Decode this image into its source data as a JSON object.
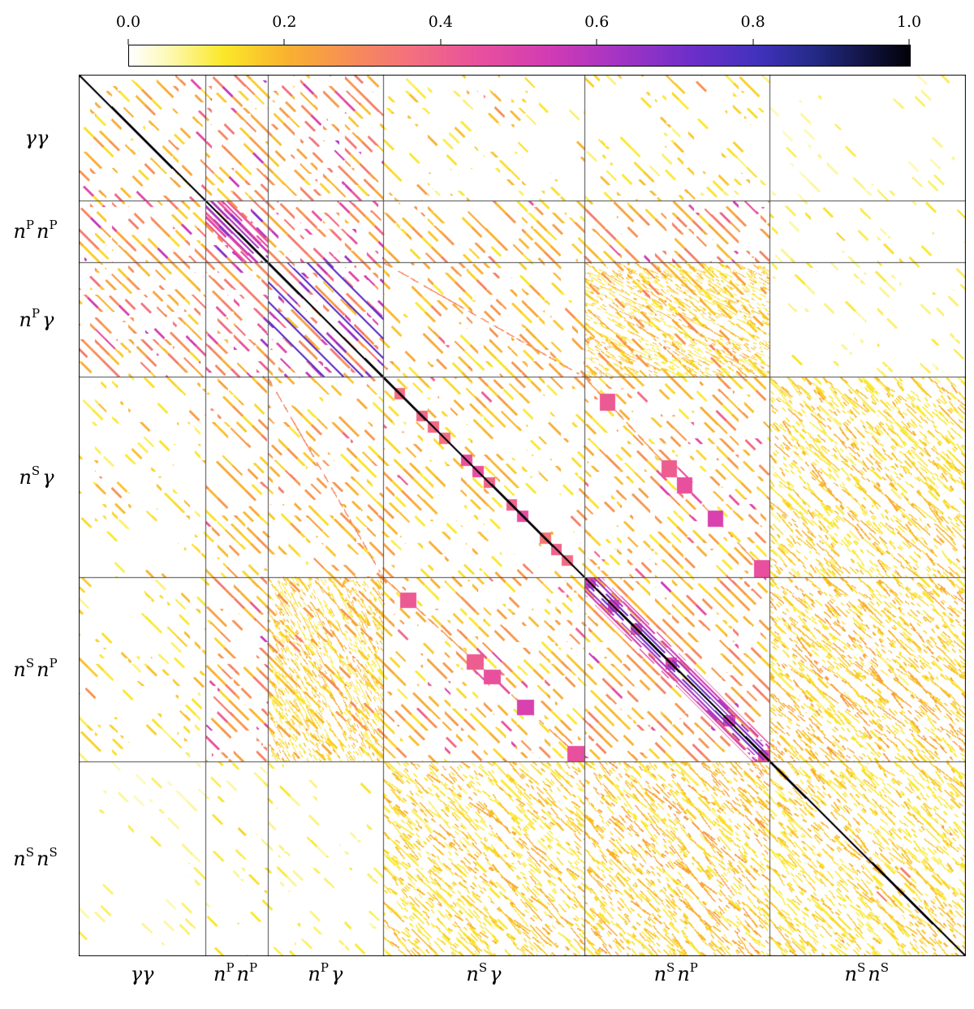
{
  "colorbar": {
    "ticks": [
      "0.0",
      "0.2",
      "0.4",
      "0.6",
      "0.8",
      "1.0"
    ],
    "tick_values": [
      0.0,
      0.2,
      0.4,
      0.6,
      0.8,
      1.0
    ],
    "min": 0.0,
    "max": 1.0
  },
  "chart_data": {
    "type": "heatmap",
    "description": "Correlation matrix between six two-point function data blocks; value 1 on the main diagonal, mostly near-zero elsewhere with periodic diagonal stripe correlations.",
    "groups": [
      {
        "name": "gamma-gamma",
        "segments": [
          [
            "γ",
            ""
          ],
          [
            "γ",
            ""
          ]
        ]
      },
      {
        "name": "nP-nP",
        "segments": [
          [
            "n",
            "P"
          ],
          [
            "n",
            "P"
          ]
        ]
      },
      {
        "name": "nP-gamma",
        "segments": [
          [
            "n",
            "P"
          ],
          [
            "γ",
            ""
          ]
        ]
      },
      {
        "name": "nS-gamma",
        "segments": [
          [
            "n",
            "S"
          ],
          [
            "γ",
            ""
          ]
        ]
      },
      {
        "name": "nS-nP",
        "segments": [
          [
            "n",
            "S"
          ],
          [
            "n",
            "P"
          ]
        ]
      },
      {
        "name": "nS-nS",
        "segments": [
          [
            "n",
            "S"
          ],
          [
            "n",
            "S"
          ]
        ]
      }
    ],
    "block_boundaries": [
      0.0,
      0.143,
      0.213,
      0.343,
      0.57,
      0.779,
      1.0
    ],
    "value_range": [
      0.0,
      1.0
    ],
    "diagonal_value": 1.0,
    "background_value": 0.0,
    "colormap_stops": [
      [
        0.0,
        "#ffffff"
      ],
      [
        0.05,
        "#fdf9b5"
      ],
      [
        0.12,
        "#fbe829"
      ],
      [
        0.2,
        "#f9b32e"
      ],
      [
        0.28,
        "#f78e55"
      ],
      [
        0.36,
        "#f3707e"
      ],
      [
        0.45,
        "#e84f9e"
      ],
      [
        0.54,
        "#d13bb5"
      ],
      [
        0.63,
        "#a234c4"
      ],
      [
        0.72,
        "#6d2fc9"
      ],
      [
        0.81,
        "#3f31bb"
      ],
      [
        0.88,
        "#232a85"
      ],
      [
        0.95,
        "#10123c"
      ],
      [
        1.0,
        "#030108"
      ]
    ],
    "block_params": [
      {
        "row": 0,
        "col": 0,
        "intensity": 0.22,
        "density": 0.5,
        "hot_frac": 0.1,
        "hot_value": 0.45
      },
      {
        "row": 0,
        "col": 1,
        "intensity": 0.26,
        "density": 0.7,
        "hot_frac": 0.12,
        "hot_value": 0.5
      },
      {
        "row": 0,
        "col": 2,
        "intensity": 0.28,
        "density": 0.65,
        "hot_frac": 0.15,
        "hot_value": 0.55
      },
      {
        "row": 0,
        "col": 3,
        "intensity": 0.16,
        "density": 0.32,
        "hot_frac": 0.04,
        "hot_value": 0.3
      },
      {
        "row": 0,
        "col": 4,
        "intensity": 0.15,
        "density": 0.3,
        "hot_frac": 0.03,
        "hot_value": 0.28
      },
      {
        "row": 0,
        "col": 5,
        "intensity": 0.08,
        "density": 0.12,
        "hot_frac": 0.0,
        "hot_value": 0.0
      },
      {
        "row": 1,
        "col": 1,
        "intensity": 0.45,
        "density": 0.95,
        "hot_frac": 0.3,
        "hot_value": 0.72
      },
      {
        "row": 1,
        "col": 2,
        "intensity": 0.35,
        "density": 0.9,
        "hot_frac": 0.25,
        "hot_value": 0.6
      },
      {
        "row": 1,
        "col": 3,
        "intensity": 0.22,
        "density": 0.6,
        "hot_frac": 0.08,
        "hot_value": 0.4
      },
      {
        "row": 1,
        "col": 4,
        "intensity": 0.26,
        "density": 0.72,
        "hot_frac": 0.12,
        "hot_value": 0.5
      },
      {
        "row": 1,
        "col": 5,
        "intensity": 0.12,
        "density": 0.3,
        "hot_frac": 0.0,
        "hot_value": 0.0
      },
      {
        "row": 2,
        "col": 2,
        "intensity": 0.3,
        "density": 0.88,
        "hot_frac": 0.2,
        "hot_value": 0.6
      },
      {
        "row": 2,
        "col": 3,
        "intensity": 0.22,
        "density": 0.62,
        "hot_frac": 0.06,
        "hot_value": 0.35
      },
      {
        "row": 2,
        "col": 4,
        "intensity": 0.22,
        "density": 0.6,
        "hot_frac": 0.06,
        "hot_value": 0.35
      },
      {
        "row": 2,
        "col": 5,
        "intensity": 0.1,
        "density": 0.25,
        "hot_frac": 0.0,
        "hot_value": 0.0
      },
      {
        "row": 3,
        "col": 3,
        "intensity": 0.2,
        "density": 0.45,
        "hot_frac": 0.05,
        "hot_value": 0.4
      },
      {
        "row": 3,
        "col": 4,
        "intensity": 0.22,
        "density": 0.55,
        "hot_frac": 0.08,
        "hot_value": 0.45
      },
      {
        "row": 3,
        "col": 5,
        "intensity": 0.1,
        "density": 0.25,
        "hot_frac": 0.0,
        "hot_value": 0.0
      },
      {
        "row": 4,
        "col": 4,
        "intensity": 0.26,
        "density": 0.68,
        "hot_frac": 0.1,
        "hot_value": 0.5
      },
      {
        "row": 4,
        "col": 5,
        "intensity": 0.13,
        "density": 0.35,
        "hot_frac": 0.02,
        "hot_value": 0.25
      },
      {
        "row": 5,
        "col": 5,
        "intensity": 0.12,
        "density": 0.25,
        "hot_frac": 0.03,
        "hot_value": 0.3
      }
    ],
    "features": [
      {
        "type": "offset_diagonals",
        "row": 2,
        "col": 2,
        "offsets": [
          0.022,
          0.044,
          0.066
        ],
        "halfwidth": 0.0013,
        "value": 0.75
      },
      {
        "type": "near_diagonal_stripes",
        "row": 1,
        "col": 1,
        "halfwidth": 0.028,
        "spacing": 0.006,
        "value": 0.68
      },
      {
        "type": "near_diagonal_stripes",
        "row": 4,
        "col": 4,
        "halfwidth": 0.02,
        "spacing": 0.005,
        "value": 0.8
      },
      {
        "type": "step_squares",
        "row": 3,
        "col": 4,
        "count": 12,
        "value": 0.48
      },
      {
        "type": "step_squares",
        "row": 4,
        "col": 4,
        "count": 16,
        "value": 0.45
      },
      {
        "type": "step_squares",
        "row": 3,
        "col": 3,
        "count": 18,
        "value": 0.42
      },
      {
        "type": "local_diagonal",
        "row": 2,
        "col": 3,
        "halfwidth": 0.006,
        "value": 0.3
      },
      {
        "type": "local_diagonal",
        "row": 3,
        "col": 4,
        "halfwidth": 0.005,
        "value": 0.26
      },
      {
        "type": "fan_lines",
        "row": 2,
        "col": 4,
        "value": 0.16
      },
      {
        "type": "fan_lines",
        "row": 3,
        "col": 5,
        "value": 0.16
      },
      {
        "type": "fan_lines",
        "row": 4,
        "col": 5,
        "value": 0.18
      },
      {
        "type": "fan_lines",
        "row": 5,
        "col": 5,
        "value": 0.15
      }
    ]
  }
}
